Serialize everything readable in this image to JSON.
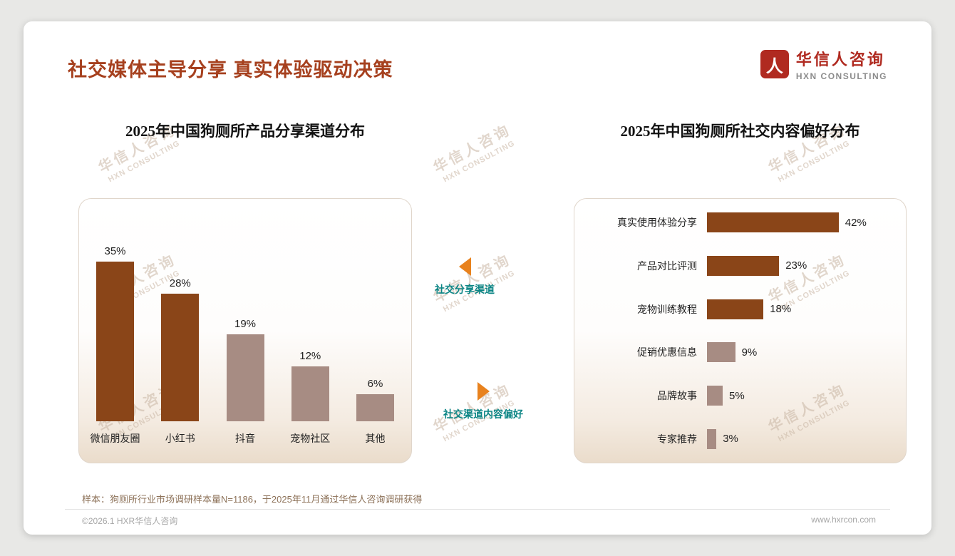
{
  "header": {
    "title": "社交媒体主导分享 真实体验驱动决策",
    "logo": {
      "cn": "华信人咨询",
      "en": "HXN CONSULTING",
      "icon_glyph": "人"
    }
  },
  "watermark": {
    "cn": "华信人咨询",
    "en": "HXN CONSULTING"
  },
  "annotations": {
    "share_channel_label": "社交分享渠道",
    "content_preference_label": "社交渠道内容偏好"
  },
  "footer": {
    "note": "样本：狗厕所行业市场调研样本量N=1186，于2025年11月通过华信人咨询调研获得",
    "copyright": "©2026.1 HXR华信人咨询",
    "website": "www.hxrcon.com"
  },
  "colors": {
    "title": "#A6401E",
    "bar_dark": "#8A4518",
    "bar_light": "#A78C83",
    "teal": "#0B8585",
    "orange": "#E8821E",
    "logo_red": "#B02A20",
    "watermark": "#C9B6A4"
  },
  "chart_data": [
    {
      "type": "bar",
      "title": "2025年中国狗厕所产品分享渠道分布",
      "categories": [
        "微信朋友圈",
        "小红书",
        "抖音",
        "宠物社区",
        "其他"
      ],
      "values": [
        35,
        28,
        19,
        12,
        6
      ],
      "unit": "%",
      "bar_styles": [
        "dark",
        "dark",
        "light",
        "light",
        "light"
      ],
      "ylim": [
        0,
        40
      ],
      "grid": false,
      "legend": "none"
    },
    {
      "type": "bar-horizontal",
      "title": "2025年中国狗厕所社交内容偏好分布",
      "categories": [
        "真实使用体验分享",
        "产品对比评测",
        "宠物训练教程",
        "促销优惠信息",
        "品牌故事",
        "专家推荐"
      ],
      "values": [
        42,
        23,
        18,
        9,
        5,
        3
      ],
      "unit": "%",
      "bar_styles": [
        "dark",
        "dark",
        "dark",
        "light",
        "light",
        "light"
      ],
      "xlim": [
        0,
        45
      ],
      "grid": false,
      "legend": "none"
    }
  ]
}
